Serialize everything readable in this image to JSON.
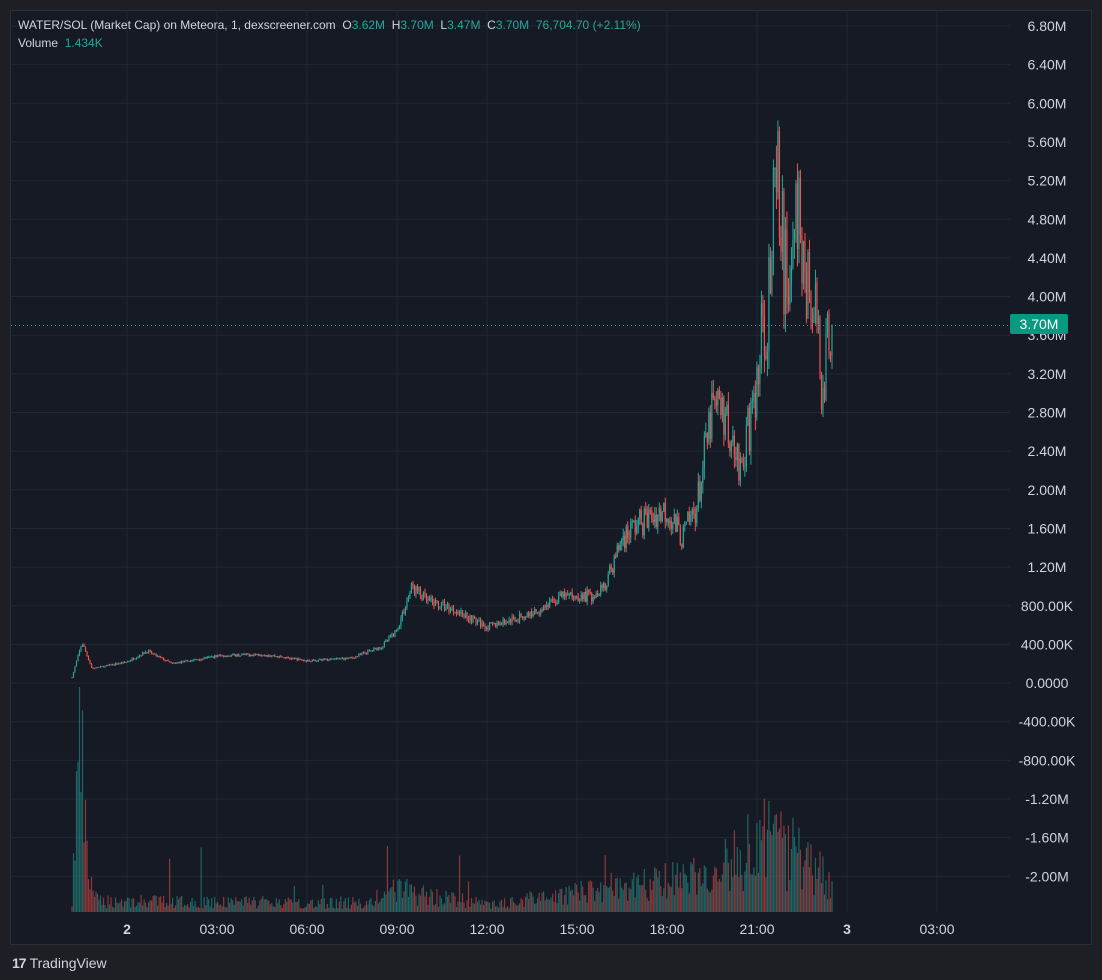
{
  "legend": {
    "symbol": "WATER/SOL (Market Cap) on Meteora, 1, dexscreener.com",
    "o_label": "O",
    "o_value": "3.62M",
    "h_label": "H",
    "h_value": "3.70M",
    "l_label": "L",
    "l_value": "3.47M",
    "c_label": "C",
    "c_value": "3.70M",
    "change": "76,704.70 (+2.11%)",
    "volume_label": "Volume",
    "volume_value": "1.434K"
  },
  "price_badge": "3.70M",
  "brand": {
    "logo": "17",
    "name": "TradingView"
  },
  "colors": {
    "up": "#26a69a",
    "down": "#ef5350",
    "background": "#161a25",
    "grid": "#232733",
    "badge": "#089981"
  },
  "chart_data": {
    "type": "candlestick",
    "title": "WATER/SOL (Market Cap) on Meteora, 1, dexscreener.com",
    "x_axis": {
      "ticks": [
        "2",
        "03:00",
        "06:00",
        "09:00",
        "12:00",
        "15:00",
        "18:00",
        "21:00",
        "3",
        "03:00"
      ],
      "bold_ticks": [
        "2",
        "3"
      ]
    },
    "y_axis": {
      "ticks": [
        "6.80M",
        "6.40M",
        "6.00M",
        "5.60M",
        "5.20M",
        "4.80M",
        "4.40M",
        "4.00M",
        "3.60M",
        "3.20M",
        "2.80M",
        "2.40M",
        "2.00M",
        "1.60M",
        "1.20M",
        "800.00K",
        "400.00K",
        "0.0000",
        "-400.00K",
        "-800.00K",
        "-1.20M",
        "-1.60M",
        "-2.00M"
      ],
      "range": [
        -2200000,
        6900000
      ]
    },
    "last_price": 3700000,
    "price_path": [
      {
        "t": "2 -01:50",
        "mcap": 60000
      },
      {
        "t": "2 -01:30",
        "mcap": 420000
      },
      {
        "t": "2 -01:10",
        "mcap": 150000
      },
      {
        "t": "2 00:00",
        "mcap": 220000
      },
      {
        "t": "2 00:40",
        "mcap": 330000
      },
      {
        "t": "2 01:30",
        "mcap": 200000
      },
      {
        "t": "2 03:00",
        "mcap": 280000
      },
      {
        "t": "2 04:30",
        "mcap": 300000
      },
      {
        "t": "2 06:00",
        "mcap": 230000
      },
      {
        "t": "2 07:30",
        "mcap": 260000
      },
      {
        "t": "2 08:30",
        "mcap": 380000
      },
      {
        "t": "2 09:00",
        "mcap": 550000
      },
      {
        "t": "2 09:30",
        "mcap": 1000000
      },
      {
        "t": "2 10:00",
        "mcap": 850000
      },
      {
        "t": "2 11:00",
        "mcap": 750000
      },
      {
        "t": "2 12:00",
        "mcap": 580000
      },
      {
        "t": "2 13:30",
        "mcap": 720000
      },
      {
        "t": "2 14:30",
        "mcap": 900000
      },
      {
        "t": "2 15:30",
        "mcap": 900000
      },
      {
        "t": "2 16:00",
        "mcap": 1050000
      },
      {
        "t": "2 16:30",
        "mcap": 1500000
      },
      {
        "t": "2 17:00",
        "mcap": 1650000
      },
      {
        "t": "2 18:00",
        "mcap": 1800000
      },
      {
        "t": "2 18:30",
        "mcap": 1500000
      },
      {
        "t": "2 19:00",
        "mcap": 1850000
      },
      {
        "t": "2 19:30",
        "mcap": 2800000
      },
      {
        "t": "2 20:00",
        "mcap": 2750000
      },
      {
        "t": "2 20:30",
        "mcap": 2200000
      },
      {
        "t": "2 21:00",
        "mcap": 3100000
      },
      {
        "t": "2 21:40",
        "mcap": 4900000
      },
      {
        "t": "2 22:00",
        "mcap": 4200000
      },
      {
        "t": "2 22:20",
        "mcap": 4700000
      },
      {
        "t": "2 22:50",
        "mcap": 3900000
      },
      {
        "t": "2 23:10",
        "mcap": 3200000
      },
      {
        "t": "2 23:30",
        "mcap": 3700000
      }
    ],
    "volume_path": [
      {
        "t": "2 -01:50",
        "vol": 0.05
      },
      {
        "t": "2 -01:35",
        "vol": 1.0
      },
      {
        "t": "2 -01:20",
        "vol": 0.25
      },
      {
        "t": "2 -01:00",
        "vol": 0.06
      },
      {
        "t": "2 08:00",
        "vol": 0.05
      },
      {
        "t": "2 09:00",
        "vol": 0.12
      },
      {
        "t": "2 12:00",
        "vol": 0.04
      },
      {
        "t": "2 16:00",
        "vol": 0.12
      },
      {
        "t": "2 19:30",
        "vol": 0.2
      },
      {
        "t": "2 21:30",
        "vol": 0.4
      },
      {
        "t": "2 23:30",
        "vol": 0.15
      }
    ]
  }
}
